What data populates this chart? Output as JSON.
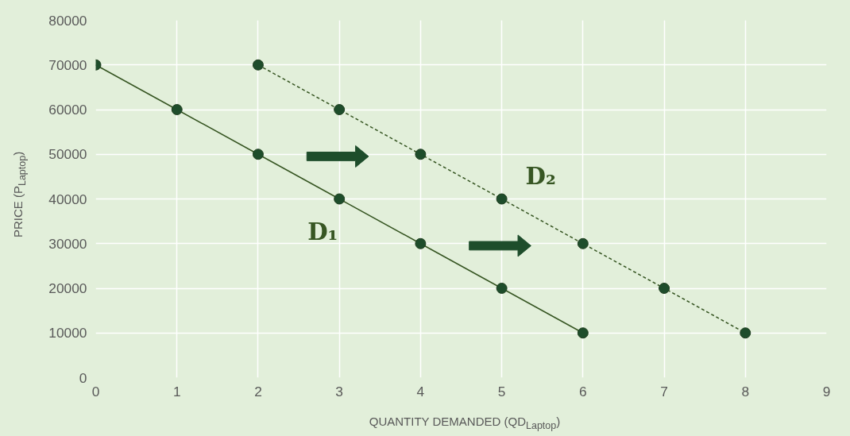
{
  "chart_data": {
    "type": "line",
    "xlabel": "QUANTITY DEMANDED (QD$_{Laptop}$)",
    "ylabel": "PRICE (P$_{Laptop}$)",
    "xlim": [
      0,
      9
    ],
    "xticks": [
      0,
      1,
      2,
      3,
      4,
      5,
      6,
      7,
      8,
      9
    ],
    "ylim": [
      0,
      80000
    ],
    "yticks": [
      0,
      10000,
      20000,
      30000,
      40000,
      50000,
      60000,
      70000,
      80000
    ],
    "grid": true,
    "marker": "circle",
    "series": [
      {
        "name": "D₁",
        "color": "#375623",
        "x": [
          0,
          1,
          2,
          3,
          4,
          5,
          6
        ],
        "values": [
          70000,
          60000,
          50000,
          40000,
          30000,
          20000,
          10000
        ],
        "line_style": "solid"
      },
      {
        "name": "D₂",
        "color": "#375623",
        "x": [
          2,
          3,
          4,
          5,
          6,
          7,
          8
        ],
        "values": [
          70000,
          60000,
          50000,
          40000,
          30000,
          20000,
          10000
        ],
        "line_style": "dashed"
      }
    ]
  }
}
